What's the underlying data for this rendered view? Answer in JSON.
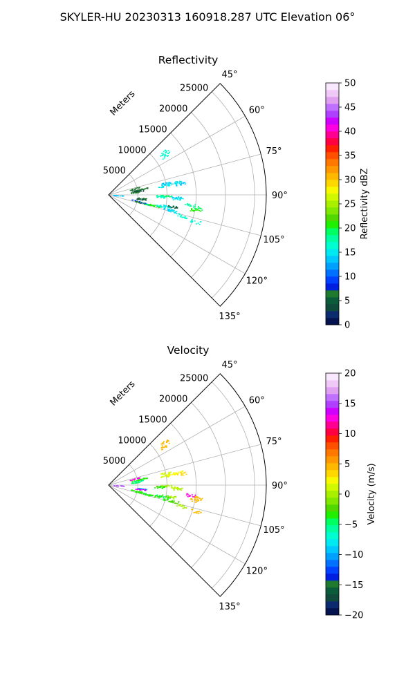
{
  "suptitle": "SKYLER-HU  20230313  160918.287 UTC Elevation 06°",
  "chart_data": [
    {
      "type": "heatmap",
      "title": "Reflectivity",
      "radial_label": "Meters",
      "r_ticks": [
        5000,
        10000,
        15000,
        20000,
        25000
      ],
      "r_tick_labels": [
        "5000",
        "10000",
        "15000",
        "20000",
        "25000"
      ],
      "rlim": [
        0,
        27000
      ],
      "theta_range_deg": [
        45,
        135
      ],
      "theta_ticks": [
        "45°",
        "60°",
        "75°",
        "90°",
        "105°",
        "120°",
        "135°"
      ],
      "grid": true,
      "colorbar": {
        "label": "Reflectivity dBZ",
        "min": 0,
        "max": 50,
        "ticks": [
          0,
          5,
          10,
          15,
          20,
          25,
          30,
          35,
          40,
          45,
          50
        ],
        "tick_labels": [
          "0",
          "5",
          "10",
          "15",
          "20",
          "25",
          "30",
          "35",
          "40",
          "45",
          "50"
        ]
      },
      "echoes": [
        {
          "az": 52,
          "range": 12000,
          "value": 17
        },
        {
          "az": 55,
          "range": 11800,
          "value": 17
        },
        {
          "az": 80.5,
          "range": 9500,
          "value": 15
        },
        {
          "az": 80,
          "range": 11000,
          "value": 15
        },
        {
          "az": 81,
          "range": 12500,
          "value": 14
        },
        {
          "az": 78,
          "range": 10000,
          "value": 14
        },
        {
          "az": 79.5,
          "range": 12000,
          "value": 15
        },
        {
          "az": 76,
          "range": 4500,
          "value": 6
        },
        {
          "az": 80,
          "range": 4800,
          "value": 5
        },
        {
          "az": 82,
          "range": 5200,
          "value": 4
        },
        {
          "az": 79,
          "range": 5800,
          "value": 7
        },
        {
          "az": 84,
          "range": 4600,
          "value": 6
        },
        {
          "az": 91,
          "range": 9000,
          "value": 18
        },
        {
          "az": 90.5,
          "range": 9800,
          "value": 19
        },
        {
          "az": 92,
          "range": 8600,
          "value": 17
        },
        {
          "az": 92,
          "range": 11500,
          "value": 14
        },
        {
          "az": 93,
          "range": 11800,
          "value": 15
        },
        {
          "az": 92,
          "range": 1700,
          "value": 13
        },
        {
          "az": 96,
          "range": 5800,
          "value": 7
        },
        {
          "az": 97,
          "range": 5500,
          "value": 5
        },
        {
          "az": 98,
          "range": 15200,
          "value": 19
        },
        {
          "az": 100,
          "range": 15000,
          "value": 20
        },
        {
          "az": 97,
          "range": 14000,
          "value": 18
        },
        {
          "az": 102,
          "range": 4800,
          "value": 9
        },
        {
          "az": 103,
          "range": 5500,
          "value": 7
        },
        {
          "az": 103,
          "range": 6600,
          "value": 11
        },
        {
          "az": 103.5,
          "range": 7200,
          "value": 19
        },
        {
          "az": 103,
          "range": 8000,
          "value": 20
        },
        {
          "az": 102,
          "range": 9000,
          "value": 17
        },
        {
          "az": 101,
          "range": 9800,
          "value": 15
        },
        {
          "az": 104,
          "range": 10500,
          "value": 14
        },
        {
          "az": 104,
          "range": 11500,
          "value": 15
        },
        {
          "az": 106,
          "range": 13000,
          "value": 17
        },
        {
          "az": 107,
          "range": 15500,
          "value": 16
        },
        {
          "az": 100.5,
          "range": 11000,
          "value": 5
        }
      ]
    },
    {
      "type": "heatmap",
      "title": "Velocity",
      "radial_label": "Meters",
      "r_ticks": [
        5000,
        10000,
        15000,
        20000,
        25000
      ],
      "r_tick_labels": [
        "5000",
        "10000",
        "15000",
        "20000",
        "25000"
      ],
      "rlim": [
        0,
        27000
      ],
      "theta_range_deg": [
        45,
        135
      ],
      "theta_ticks": [
        "45°",
        "60°",
        "75°",
        "90°",
        "105°",
        "120°",
        "135°"
      ],
      "grid": true,
      "colorbar": {
        "label": "Velocity (m/s)",
        "min": -20,
        "max": 20,
        "ticks": [
          -20,
          -15,
          -10,
          -5,
          0,
          5,
          10,
          15,
          20
        ],
        "tick_labels": [
          "−20",
          "−15",
          "−10",
          "−5",
          "0",
          "5",
          "10",
          "15",
          "20"
        ]
      },
      "echoes": [
        {
          "az": 52,
          "range": 12000,
          "value": 4
        },
        {
          "az": 55,
          "range": 11800,
          "value": 5
        },
        {
          "az": 80.5,
          "range": 9500,
          "value": 1
        },
        {
          "az": 80,
          "range": 11000,
          "value": 2
        },
        {
          "az": 81,
          "range": 12500,
          "value": 3
        },
        {
          "az": 78,
          "range": 10000,
          "value": 1
        },
        {
          "az": 79.5,
          "range": 12000,
          "value": 2
        },
        {
          "az": 76,
          "range": 4500,
          "value": 12
        },
        {
          "az": 80,
          "range": 4800,
          "value": -4
        },
        {
          "az": 82,
          "range": 5200,
          "value": -6
        },
        {
          "az": 79,
          "range": 5800,
          "value": -3
        },
        {
          "az": 84,
          "range": 4600,
          "value": -5
        },
        {
          "az": 91,
          "range": 9000,
          "value": -2
        },
        {
          "az": 90.5,
          "range": 9800,
          "value": 0
        },
        {
          "az": 92,
          "range": 8600,
          "value": -3
        },
        {
          "az": 92,
          "range": 11500,
          "value": 1
        },
        {
          "az": 93,
          "range": 11800,
          "value": 0
        },
        {
          "az": 92,
          "range": 1700,
          "value": 15
        },
        {
          "az": 96,
          "range": 5800,
          "value": -9
        },
        {
          "az": 97,
          "range": 5500,
          "value": 14
        },
        {
          "az": 98,
          "range": 15200,
          "value": 4
        },
        {
          "az": 100,
          "range": 15000,
          "value": 5
        },
        {
          "az": 97,
          "range": 14000,
          "value": 12
        },
        {
          "az": 102,
          "range": 4800,
          "value": -3
        },
        {
          "az": 103,
          "range": 5500,
          "value": -4
        },
        {
          "az": 103,
          "range": 6600,
          "value": -5
        },
        {
          "az": 103.5,
          "range": 7200,
          "value": -4
        },
        {
          "az": 103,
          "range": 8000,
          "value": -3
        },
        {
          "az": 102,
          "range": 9000,
          "value": -5
        },
        {
          "az": 101,
          "range": 9800,
          "value": -4
        },
        {
          "az": 104,
          "range": 10500,
          "value": -3
        },
        {
          "az": 104,
          "range": 11500,
          "value": -2
        },
        {
          "az": 106,
          "range": 13000,
          "value": 0
        },
        {
          "az": 107,
          "range": 15500,
          "value": 5
        },
        {
          "az": 100.5,
          "range": 11000,
          "value": 0
        }
      ]
    }
  ],
  "colormap": [
    "#05134f",
    "#0b2b6e",
    "#0f4a3a",
    "#0b5c3a",
    "#1f7a2e",
    "#001ee0",
    "#0040ff",
    "#0070ff",
    "#00a0ff",
    "#00c8ff",
    "#00e8f0",
    "#00ffd0",
    "#00ffa0",
    "#00ff60",
    "#20f000",
    "#50d800",
    "#80e800",
    "#a8f000",
    "#d0f800",
    "#f8f800",
    "#ffd800",
    "#ffb800",
    "#ff9800",
    "#ff7800",
    "#ff5000",
    "#ff2000",
    "#ff0040",
    "#ff0090",
    "#ff00e0",
    "#d000ff",
    "#b040ff",
    "#c070ff",
    "#e0a0f0",
    "#f0c8f8",
    "#fae8ff"
  ]
}
